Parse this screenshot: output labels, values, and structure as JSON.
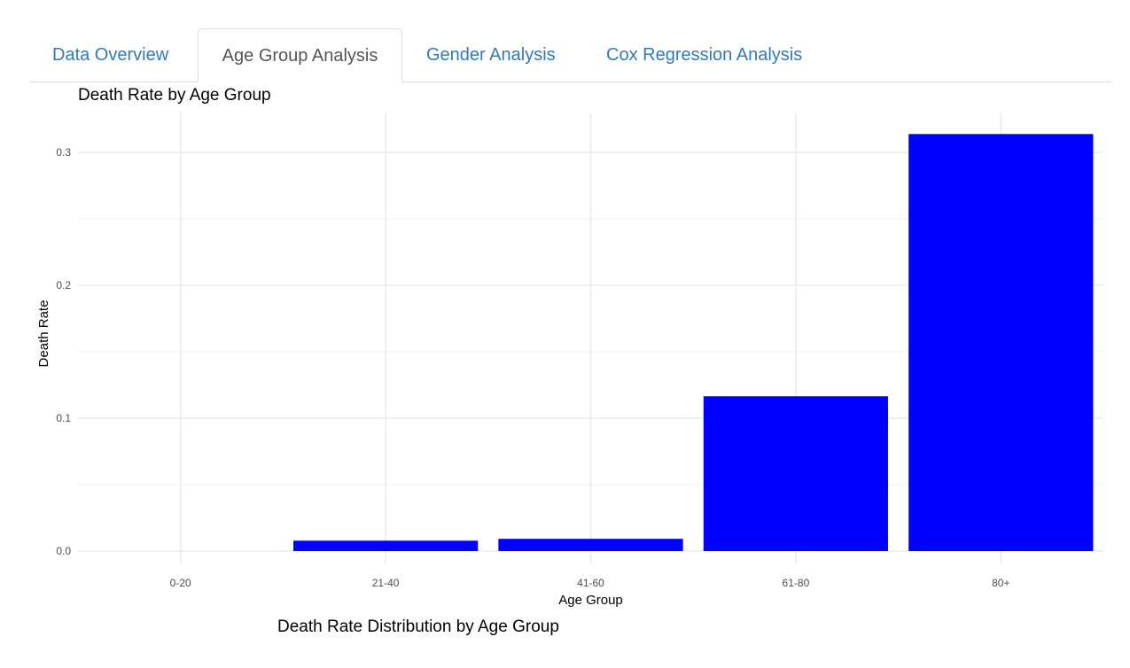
{
  "tabs": [
    {
      "label": "Data Overview",
      "active": false
    },
    {
      "label": "Age Group Analysis",
      "active": true
    },
    {
      "label": "Gender Analysis",
      "active": false
    },
    {
      "label": "Cox Regression Analysis",
      "active": false
    }
  ],
  "plot": {
    "title": "Death Rate by Age Group",
    "caption": "Death Rate Distribution by Age Group"
  },
  "chart_data": {
    "type": "bar",
    "title": "Death Rate by Age Group",
    "xlabel": "Age Group",
    "ylabel": "Death Rate",
    "categories": [
      "0-20",
      "21-40",
      "41-60",
      "61-80",
      "80+"
    ],
    "values": [
      0.0,
      0.0078,
      0.0092,
      0.1165,
      0.3138
    ],
    "ylim": [
      0,
      0.3
    ],
    "yticks": [
      0.0,
      0.1,
      0.2,
      0.3
    ],
    "ytick_labels": [
      "0.0",
      "0.1",
      "0.2",
      "0.3"
    ],
    "grid": true,
    "bar_color": "#0000ff",
    "grid_color": "#ebebeb"
  }
}
